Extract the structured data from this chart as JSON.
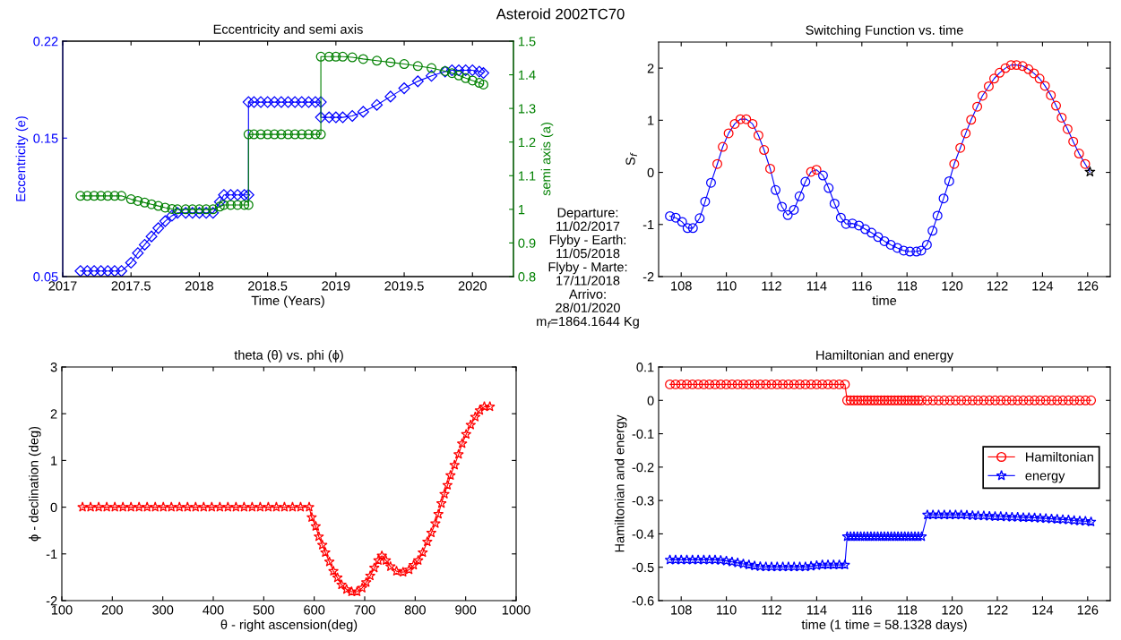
{
  "chart_data": [
    {
      "type": "line",
      "title": "Eccentricity and semi axis",
      "xlabel": "Time (Years)",
      "ylabel": "Eccentricity (e)",
      "y2label": "semi axis (a)",
      "annotations": [
        "Asteroid 2002TC70",
        "Departure:\n11/02/2017\nFlyby - Earth:\n11/05/2018\nFlyby - Marte:\n17/11/2018\nArrivo:\n28/01/2020\nm$_{f}$=1864.1644 Kg"
      ],
      "x": [
        2017.13,
        2017.18,
        2017.23,
        2017.28,
        2017.33,
        2017.38,
        2017.43,
        2017.5,
        2017.55,
        2017.6,
        2017.65,
        2017.7,
        2017.75,
        2017.8,
        2017.84,
        2017.9,
        2017.95,
        2018.0,
        2018.05,
        2018.1,
        2018.15,
        2018.18,
        2018.23,
        2018.28,
        2018.33,
        2018.36,
        2018.36,
        2018.4,
        2018.45,
        2018.5,
        2018.55,
        2018.6,
        2018.65,
        2018.7,
        2018.75,
        2018.8,
        2018.85,
        2018.89,
        2018.89,
        2018.95,
        2019.0,
        2019.05,
        2019.12,
        2019.2,
        2019.3,
        2019.4,
        2019.5,
        2019.6,
        2019.7,
        2019.8,
        2019.85,
        2019.9,
        2019.95,
        2020.0,
        2020.05,
        2020.08
      ],
      "series": [
        {
          "color": "#0000ff",
          "marker": "diamond",
          "axis": "y",
          "values": [
            0.054,
            0.054,
            0.054,
            0.054,
            0.054,
            0.054,
            0.054,
            0.06,
            0.067,
            0.073,
            0.079,
            0.085,
            0.09,
            0.094,
            0.096,
            0.096,
            0.096,
            0.096,
            0.096,
            0.096,
            0.104,
            0.109,
            0.109,
            0.109,
            0.109,
            0.109,
            0.176,
            0.176,
            0.176,
            0.176,
            0.176,
            0.176,
            0.176,
            0.176,
            0.176,
            0.176,
            0.176,
            0.176,
            0.165,
            0.165,
            0.165,
            0.165,
            0.166,
            0.169,
            0.174,
            0.18,
            0.186,
            0.191,
            0.195,
            0.198,
            0.199,
            0.199,
            0.199,
            0.199,
            0.198,
            0.197
          ]
        },
        {
          "color": "#008000",
          "marker": "circle",
          "axis": "y2",
          "values": [
            1.04,
            1.04,
            1.04,
            1.04,
            1.04,
            1.04,
            1.04,
            1.03,
            1.025,
            1.02,
            1.015,
            1.01,
            1.005,
            1.001,
            1.0,
            1.0,
            1.0,
            1.0,
            1.0,
            1.0,
            1.008,
            1.013,
            1.013,
            1.013,
            1.013,
            1.013,
            1.223,
            1.223,
            1.223,
            1.223,
            1.223,
            1.223,
            1.223,
            1.223,
            1.223,
            1.223,
            1.223,
            1.223,
            1.454,
            1.454,
            1.454,
            1.454,
            1.452,
            1.447,
            1.442,
            1.437,
            1.432,
            1.426,
            1.42,
            1.411,
            1.405,
            1.398,
            1.39,
            1.383,
            1.376,
            1.371
          ]
        }
      ],
      "xlim": [
        2017,
        2020.3
      ],
      "xticks": [
        2017,
        2017.5,
        2018,
        2018.5,
        2019,
        2019.5,
        2020
      ],
      "ylim": [
        0.05,
        0.22
      ],
      "yticks": [
        0.05,
        0.15,
        0.22
      ],
      "y2lim": [
        0.8,
        1.5
      ],
      "y2ticks": [
        0.8,
        0.9,
        1,
        1.1,
        1.2,
        1.3,
        1.4,
        1.5
      ],
      "grid": false,
      "legend": false,
      "line_style": "solid"
    },
    {
      "type": "line",
      "title": "Switching Function vs. time",
      "xlabel": "time",
      "ylabel": "S$_{f}$",
      "x": [
        107.5,
        107.76,
        108.04,
        108.28,
        108.52,
        108.82,
        109.06,
        109.32,
        109.6,
        109.84,
        110.1,
        110.37,
        110.62,
        110.88,
        111.16,
        111.42,
        111.67,
        111.94,
        112.18,
        112.46,
        112.72,
        112.99,
        113.24,
        113.5,
        113.75,
        113.99,
        114.28,
        114.53,
        114.79,
        115.07,
        115.3,
        115.58,
        115.87,
        116.15,
        116.43,
        116.72,
        117.0,
        117.28,
        117.57,
        117.85,
        118.13,
        118.42,
        118.63,
        118.88,
        119.13,
        119.35,
        119.62,
        119.87,
        120.09,
        120.36,
        120.6,
        120.84,
        121.11,
        121.34,
        121.62,
        121.86,
        122.1,
        122.36,
        122.61,
        122.85,
        123.12,
        123.38,
        123.62,
        123.87,
        124.11,
        124.37,
        124.6,
        124.85,
        125.11,
        125.36,
        125.62,
        125.89
      ],
      "series": [
        {
          "type": "line",
          "color": "#0000ff",
          "marker": "none",
          "x": [
            107.5,
            107.76,
            108.04,
            108.28,
            108.52,
            108.82,
            109.06,
            109.32,
            109.6,
            109.84,
            110.1,
            110.37,
            110.62,
            110.88,
            111.16,
            111.42,
            111.67,
            111.94,
            112.18,
            112.46,
            112.72,
            112.99,
            113.24,
            113.5,
            113.75,
            113.99,
            114.28,
            114.53,
            114.79,
            115.07,
            115.3,
            115.58,
            115.87,
            116.15,
            116.43,
            116.72,
            117.0,
            117.28,
            117.57,
            117.85,
            118.13,
            118.42,
            118.63,
            118.88,
            119.13,
            119.35,
            119.62,
            119.87,
            120.09,
            120.36,
            120.6,
            120.84,
            121.11,
            121.34,
            121.62,
            121.86,
            122.1,
            122.36,
            122.61,
            122.85,
            123.12,
            123.38,
            123.62,
            123.87,
            124.11,
            124.37,
            124.6,
            124.85,
            125.11,
            125.36,
            125.62,
            125.89,
            126.1
          ],
          "values": [
            -0.84,
            -0.87,
            -0.95,
            -1.07,
            -1.07,
            -0.88,
            -0.56,
            -0.2,
            0.16,
            0.49,
            0.75,
            0.93,
            1.02,
            1.02,
            0.93,
            0.71,
            0.43,
            0.07,
            -0.34,
            -0.66,
            -0.82,
            -0.72,
            -0.46,
            -0.18,
            0.01,
            0.05,
            -0.06,
            -0.3,
            -0.6,
            -0.87,
            -0.99,
            -0.98,
            -1.02,
            -1.09,
            -1.16,
            -1.24,
            -1.32,
            -1.39,
            -1.45,
            -1.5,
            -1.52,
            -1.52,
            -1.5,
            -1.39,
            -1.12,
            -0.83,
            -0.5,
            -0.17,
            0.16,
            0.47,
            0.75,
            1.01,
            1.26,
            1.47,
            1.65,
            1.8,
            1.91,
            2.0,
            2.06,
            2.06,
            2.04,
            1.98,
            1.9,
            1.8,
            1.66,
            1.48,
            1.28,
            1.05,
            0.83,
            0.59,
            0.36,
            0.16,
            0.01
          ]
        },
        {
          "type": "scatter",
          "color": "#0000ff",
          "marker": "circle",
          "colors": [
            "#0000ff",
            "#0000ff",
            "#0000ff",
            "#0000ff",
            "#0000ff",
            "#0000ff",
            "#0000ff",
            "#0000ff",
            "#ff0000",
            "#ff0000",
            "#ff0000",
            "#ff0000",
            "#ff0000",
            "#ff0000",
            "#ff0000",
            "#ff0000",
            "#ff0000",
            "#ff0000",
            "#0000ff",
            "#0000ff",
            "#0000ff",
            "#0000ff",
            "#0000ff",
            "#0000ff",
            "#ff0000",
            "#ff0000",
            "#0000ff",
            "#0000ff",
            "#0000ff",
            "#0000ff",
            "#0000ff",
            "#0000ff",
            "#0000ff",
            "#0000ff",
            "#0000ff",
            "#0000ff",
            "#0000ff",
            "#0000ff",
            "#0000ff",
            "#0000ff",
            "#0000ff",
            "#0000ff",
            "#0000ff",
            "#0000ff",
            "#0000ff",
            "#0000ff",
            "#0000ff",
            "#0000ff",
            "#ff0000",
            "#ff0000",
            "#ff0000",
            "#ff0000",
            "#ff0000",
            "#ff0000",
            "#ff0000",
            "#ff0000",
            "#ff0000",
            "#ff0000",
            "#ff0000",
            "#ff0000",
            "#ff0000",
            "#ff0000",
            "#ff0000",
            "#ff0000",
            "#ff0000",
            "#ff0000",
            "#ff0000",
            "#ff0000",
            "#ff0000",
            "#ff0000",
            "#ff0000",
            "#ff0000"
          ],
          "values": [
            -0.84,
            -0.87,
            -0.95,
            -1.07,
            -1.07,
            -0.88,
            -0.56,
            -0.2,
            0.16,
            0.49,
            0.75,
            0.93,
            1.02,
            1.02,
            0.93,
            0.71,
            0.43,
            0.07,
            -0.34,
            -0.66,
            -0.82,
            -0.72,
            -0.46,
            -0.18,
            0.01,
            0.05,
            -0.06,
            -0.3,
            -0.6,
            -0.87,
            -0.99,
            -0.98,
            -1.02,
            -1.09,
            -1.16,
            -1.24,
            -1.32,
            -1.39,
            -1.45,
            -1.5,
            -1.52,
            -1.52,
            -1.5,
            -1.39,
            -1.12,
            -0.83,
            -0.5,
            -0.17,
            0.16,
            0.47,
            0.75,
            1.01,
            1.26,
            1.47,
            1.65,
            1.8,
            1.91,
            2.0,
            2.06,
            2.06,
            2.04,
            1.98,
            1.9,
            1.8,
            1.66,
            1.48,
            1.28,
            1.05,
            0.83,
            0.59,
            0.36,
            0.16
          ]
        },
        {
          "type": "scatter",
          "color": "#000000",
          "marker": "star",
          "x": [
            126.1
          ],
          "values": [
            0.01
          ]
        }
      ],
      "xlim": [
        107,
        127
      ],
      "xticks": [
        108,
        110,
        112,
        114,
        116,
        118,
        120,
        122,
        124,
        126
      ],
      "ylim": [
        -2,
        2.5
      ],
      "yticks": [
        -2,
        -1,
        0,
        1,
        2
      ],
      "grid": false,
      "legend": false,
      "line_style": "solid"
    },
    {
      "type": "line",
      "title": "theta (θ) vs. phi (ϕ)",
      "xlabel": "θ - right ascension(deg)",
      "ylabel": "ϕ - declination (deg)",
      "x": [
        141,
        157,
        173,
        189,
        205,
        221,
        237,
        253,
        269,
        285,
        301,
        317,
        333,
        349,
        365,
        381,
        397,
        413,
        429,
        445,
        461,
        477,
        493,
        509,
        525,
        541,
        557,
        573,
        590,
        595,
        603,
        609,
        616,
        622,
        630,
        638,
        646,
        654,
        664,
        674,
        685,
        695,
        703,
        711,
        719,
        727,
        734,
        742,
        751,
        763,
        776,
        788,
        797,
        806,
        815,
        824,
        832,
        840,
        846,
        852,
        858,
        864,
        870,
        878,
        886,
        893,
        901,
        910,
        919,
        928,
        937,
        948
      ],
      "series": [
        {
          "color": "#ff0000",
          "marker": "star",
          "values": [
            0,
            0,
            0,
            0,
            0,
            0,
            0,
            0,
            0,
            0,
            0,
            0,
            0,
            0,
            0,
            0,
            0,
            0,
            0,
            0,
            0,
            0,
            0,
            0,
            0,
            0,
            0,
            0,
            0,
            -0.22,
            -0.41,
            -0.63,
            -0.81,
            -0.97,
            -1.17,
            -1.37,
            -1.51,
            -1.66,
            -1.76,
            -1.81,
            -1.81,
            -1.73,
            -1.61,
            -1.47,
            -1.3,
            -1.14,
            -1.04,
            -1.14,
            -1.27,
            -1.37,
            -1.39,
            -1.34,
            -1.24,
            -1.14,
            -0.97,
            -0.74,
            -0.55,
            -0.35,
            -0.15,
            0.08,
            0.28,
            0.47,
            0.68,
            0.9,
            1.13,
            1.36,
            1.56,
            1.76,
            1.93,
            2.07,
            2.15,
            2.15
          ]
        }
      ],
      "xlim": [
        100,
        1000
      ],
      "xticks": [
        100,
        200,
        300,
        400,
        500,
        600,
        700,
        800,
        900,
        1000
      ],
      "ylim": [
        -2,
        3
      ],
      "yticks": [
        -2,
        -1,
        0,
        1,
        2,
        3
      ],
      "grid": false,
      "legend": false,
      "line_style": "solid"
    },
    {
      "type": "line",
      "title": "Hamiltonian and energy",
      "xlabel": "time (1 time = 58.1328 days)",
      "ylabel": "Hamiltonian and energy",
      "x": [
        107.5,
        107.75,
        108,
        108.25,
        108.5,
        108.75,
        109,
        109.25,
        109.5,
        109.75,
        110,
        110.25,
        110.5,
        110.75,
        111,
        111.25,
        111.5,
        111.75,
        112,
        112.25,
        112.5,
        112.75,
        113,
        113.25,
        113.5,
        113.75,
        114,
        114.25,
        114.5,
        114.75,
        115,
        115.25,
        115.35,
        115.5,
        115.65,
        115.8,
        115.95,
        116.1,
        116.25,
        116.4,
        116.55,
        116.7,
        116.85,
        117,
        117.15,
        117.3,
        117.45,
        117.6,
        117.75,
        117.9,
        118.05,
        118.2,
        118.35,
        118.5,
        118.65,
        118.9,
        119.15,
        119.4,
        119.65,
        119.9,
        120.15,
        120.4,
        120.65,
        120.9,
        121.15,
        121.4,
        121.65,
        121.9,
        122.15,
        122.4,
        122.65,
        122.9,
        123.15,
        123.4,
        123.65,
        123.9,
        124.15,
        124.4,
        124.65,
        124.9,
        125.15,
        125.4,
        125.65,
        125.9,
        126.15
      ],
      "series": [
        {
          "name": "Hamiltonian",
          "color": "#ff0000",
          "marker": "circle",
          "values": [
            0.048,
            0.048,
            0.048,
            0.048,
            0.048,
            0.048,
            0.048,
            0.048,
            0.048,
            0.048,
            0.048,
            0.048,
            0.048,
            0.048,
            0.048,
            0.048,
            0.048,
            0.048,
            0.048,
            0.048,
            0.048,
            0.048,
            0.048,
            0.048,
            0.048,
            0.048,
            0.048,
            0.048,
            0.048,
            0.048,
            0.048,
            0.048,
            0,
            0,
            0,
            0,
            0,
            0,
            0,
            0,
            0,
            0,
            0,
            0,
            0,
            0,
            0,
            0,
            0,
            0,
            0,
            0,
            0,
            0,
            0,
            0,
            0,
            0,
            0,
            0,
            0,
            0,
            0,
            0,
            0,
            0,
            0,
            0,
            0,
            0,
            0,
            0,
            0,
            0,
            0,
            0,
            0,
            0,
            0,
            0,
            0,
            0,
            0,
            0,
            0
          ]
        },
        {
          "name": "energy",
          "color": "#0000ff",
          "marker": "star",
          "values": [
            -0.478,
            -0.478,
            -0.478,
            -0.478,
            -0.478,
            -0.478,
            -0.478,
            -0.478,
            -0.478,
            -0.479,
            -0.481,
            -0.484,
            -0.487,
            -0.49,
            -0.493,
            -0.496,
            -0.498,
            -0.499,
            -0.499,
            -0.499,
            -0.499,
            -0.499,
            -0.499,
            -0.499,
            -0.499,
            -0.497,
            -0.495,
            -0.493,
            -0.493,
            -0.493,
            -0.493,
            -0.493,
            -0.408,
            -0.408,
            -0.408,
            -0.408,
            -0.408,
            -0.408,
            -0.408,
            -0.408,
            -0.408,
            -0.408,
            -0.408,
            -0.408,
            -0.408,
            -0.408,
            -0.408,
            -0.408,
            -0.408,
            -0.408,
            -0.408,
            -0.408,
            -0.408,
            -0.408,
            -0.408,
            -0.343,
            -0.343,
            -0.343,
            -0.343,
            -0.343,
            -0.343,
            -0.343,
            -0.344,
            -0.345,
            -0.346,
            -0.346,
            -0.347,
            -0.348,
            -0.348,
            -0.349,
            -0.35,
            -0.35,
            -0.351,
            -0.351,
            -0.352,
            -0.353,
            -0.354,
            -0.355,
            -0.356,
            -0.357,
            -0.358,
            -0.36,
            -0.361,
            -0.362,
            -0.364
          ]
        }
      ],
      "xlim": [
        107,
        127
      ],
      "xticks": [
        108,
        110,
        112,
        114,
        116,
        118,
        120,
        122,
        124,
        126
      ],
      "ylim": [
        -0.6,
        0.1
      ],
      "yticks": [
        -0.6,
        -0.5,
        -0.4,
        -0.3,
        -0.2,
        -0.1,
        0,
        0.1
      ],
      "grid": false,
      "legend": "right",
      "line_style": "solid"
    }
  ]
}
